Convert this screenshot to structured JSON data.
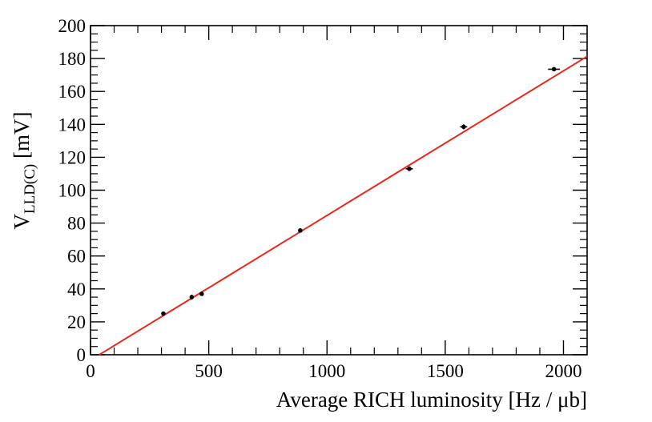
{
  "chart_data": {
    "type": "scatter",
    "xlabel": "Average RICH luminosity [Hz / μb]",
    "ylabel": {
      "main": "V",
      "subscript": "LLD(C)",
      "unit": " [mV]"
    },
    "xlim": [
      0,
      2100
    ],
    "ylim": [
      0,
      200
    ],
    "xticks": [
      0,
      500,
      1000,
      1500,
      2000
    ],
    "yticks": [
      0,
      20,
      40,
      60,
      80,
      100,
      120,
      140,
      160,
      180,
      200
    ],
    "points": [
      {
        "x": 308,
        "y": 25,
        "xerr": 5,
        "yerr": 1
      },
      {
        "x": 428,
        "y": 35,
        "xerr": 6,
        "yerr": 1.5
      },
      {
        "x": 470,
        "y": 37,
        "xerr": 6,
        "yerr": 1.2
      },
      {
        "x": 887,
        "y": 75.5,
        "xerr": 6,
        "yerr": 1
      },
      {
        "x": 1348,
        "y": 113,
        "xerr": 15,
        "yerr": 1.3
      },
      {
        "x": 1578,
        "y": 138.5,
        "xerr": 15,
        "yerr": 1.5
      },
      {
        "x": 1960,
        "y": 173.5,
        "xerr": 25,
        "yerr": 1
      }
    ],
    "fit_line": {
      "color": "#e8261f",
      "x": [
        37,
        2100
      ],
      "y": [
        0,
        181.3
      ]
    },
    "grid": false,
    "legend": "none"
  }
}
